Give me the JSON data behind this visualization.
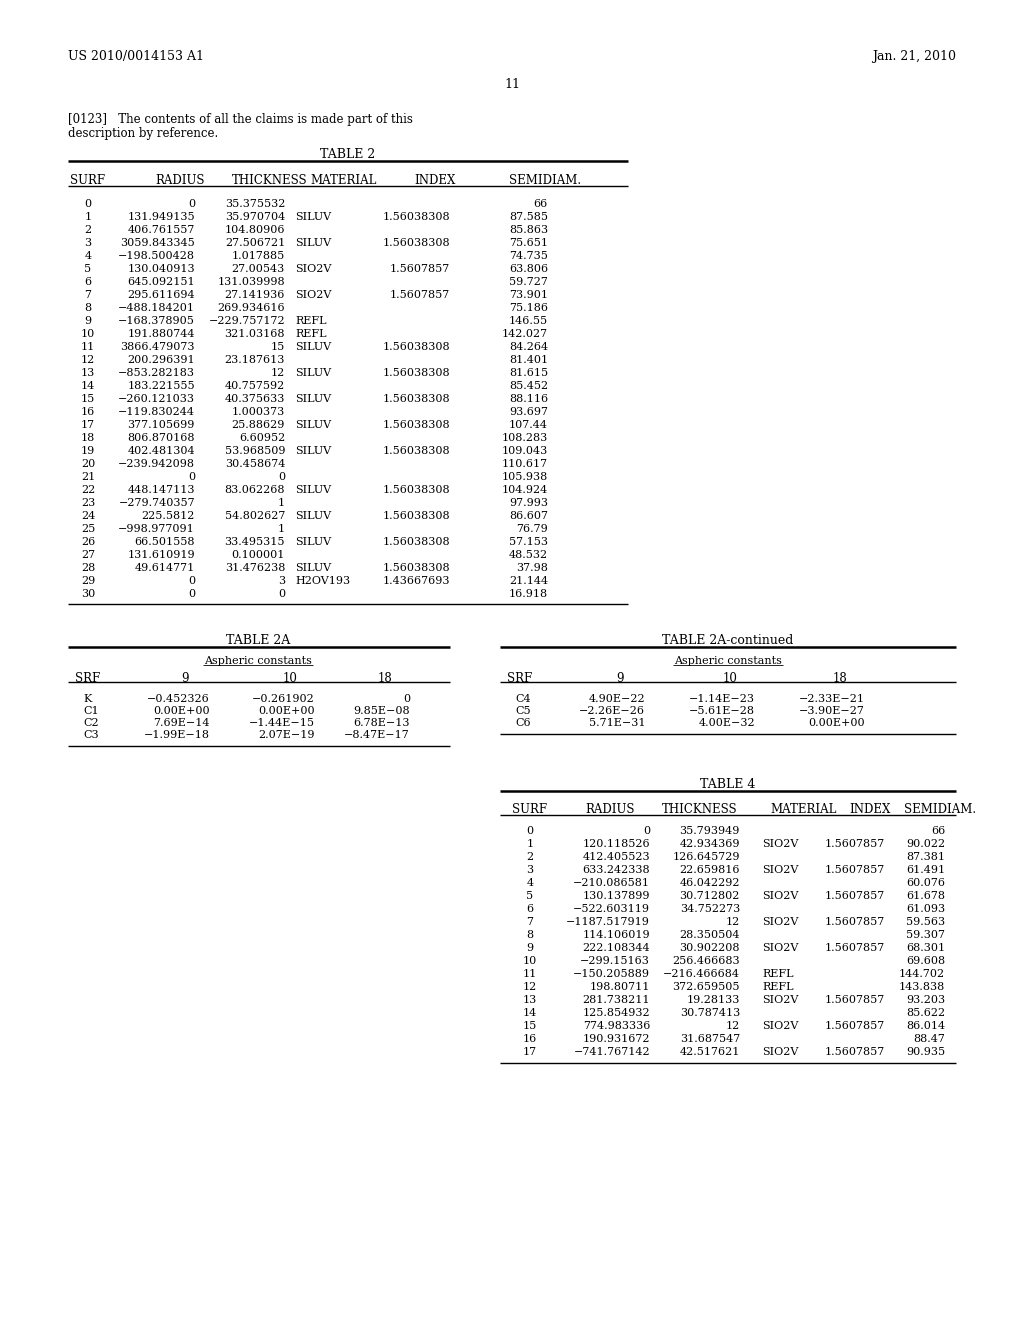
{
  "header_left": "US 2010/0014153 A1",
  "header_right": "Jan. 21, 2010",
  "page_number": "11",
  "para_line1": "[0123]   The contents of all the claims is made part of this",
  "para_line2": "description by reference.",
  "table2_title": "TABLE 2",
  "table2_headers": [
    "SURF",
    "RADIUS",
    "THICKNESS",
    "MATERIAL",
    "INDEX",
    "SEMIDIAM."
  ],
  "table2_rows": [
    [
      "0",
      "0",
      "35.375532",
      "",
      "",
      "66"
    ],
    [
      "1",
      "131.949135",
      "35.970704",
      "SILUV",
      "1.56038308",
      "87.585"
    ],
    [
      "2",
      "406.761557",
      "104.80906",
      "",
      "",
      "85.863"
    ],
    [
      "3",
      "3059.843345",
      "27.506721",
      "SILUV",
      "1.56038308",
      "75.651"
    ],
    [
      "4",
      "−198.500428",
      "1.017885",
      "",
      "",
      "74.735"
    ],
    [
      "5",
      "130.040913",
      "27.00543",
      "SIO2V",
      "1.5607857",
      "63.806"
    ],
    [
      "6",
      "645.092151",
      "131.039998",
      "",
      "",
      "59.727"
    ],
    [
      "7",
      "295.611694",
      "27.141936",
      "SIO2V",
      "1.5607857",
      "73.901"
    ],
    [
      "8",
      "−488.184201",
      "269.934616",
      "",
      "",
      "75.186"
    ],
    [
      "9",
      "−168.378905",
      "−229.757172",
      "REFL",
      "",
      "146.55"
    ],
    [
      "10",
      "191.880744",
      "321.03168",
      "REFL",
      "",
      "142.027"
    ],
    [
      "11",
      "3866.479073",
      "15",
      "SILUV",
      "1.56038308",
      "84.264"
    ],
    [
      "12",
      "200.296391",
      "23.187613",
      "",
      "",
      "81.401"
    ],
    [
      "13",
      "−853.282183",
      "12",
      "SILUV",
      "1.56038308",
      "81.615"
    ],
    [
      "14",
      "183.221555",
      "40.757592",
      "",
      "",
      "85.452"
    ],
    [
      "15",
      "−260.121033",
      "40.375633",
      "SILUV",
      "1.56038308",
      "88.116"
    ],
    [
      "16",
      "−119.830244",
      "1.000373",
      "",
      "",
      "93.697"
    ],
    [
      "17",
      "377.105699",
      "25.88629",
      "SILUV",
      "1.56038308",
      "107.44"
    ],
    [
      "18",
      "806.870168",
      "6.60952",
      "",
      "",
      "108.283"
    ],
    [
      "19",
      "402.481304",
      "53.968509",
      "SILUV",
      "1.56038308",
      "109.043"
    ],
    [
      "20",
      "−239.942098",
      "30.458674",
      "",
      "",
      "110.617"
    ],
    [
      "21",
      "0",
      "0",
      "",
      "",
      "105.938"
    ],
    [
      "22",
      "448.147113",
      "83.062268",
      "SILUV",
      "1.56038308",
      "104.924"
    ],
    [
      "23",
      "−279.740357",
      "1",
      "",
      "",
      "97.993"
    ],
    [
      "24",
      "225.5812",
      "54.802627",
      "SILUV",
      "1.56038308",
      "86.607"
    ],
    [
      "25",
      "−998.977091",
      "1",
      "",
      "",
      "76.79"
    ],
    [
      "26",
      "66.501558",
      "33.495315",
      "SILUV",
      "1.56038308",
      "57.153"
    ],
    [
      "27",
      "131.610919",
      "0.100001",
      "",
      "",
      "48.532"
    ],
    [
      "28",
      "49.614771",
      "31.476238",
      "SILUV",
      "1.56038308",
      "37.98"
    ],
    [
      "29",
      "0",
      "3",
      "H2OV193",
      "1.43667693",
      "21.144"
    ],
    [
      "30",
      "0",
      "0",
      "",
      "",
      "16.918"
    ]
  ],
  "table2a_title": "TABLE 2A",
  "table2a_cont_title": "TABLE 2A-continued",
  "table2a_subtitle": "Aspheric constants",
  "table2a_headers": [
    "SRF",
    "9",
    "10",
    "18"
  ],
  "table2a_rows": [
    [
      "K",
      "−0.452326",
      "−0.261902",
      "0"
    ],
    [
      "C1",
      "0.00E+00",
      "0.00E+00",
      "9.85E−08"
    ],
    [
      "C2",
      "7.69E−14",
      "−1.44E−15",
      "6.78E−13"
    ],
    [
      "C3",
      "−1.99E−18",
      "2.07E−19",
      "−8.47E−17"
    ]
  ],
  "table2a_cont_rows": [
    [
      "C4",
      "4.90E−22",
      "−1.14E−23",
      "−2.33E−21"
    ],
    [
      "C5",
      "−2.26E−26",
      "−5.61E−28",
      "−3.90E−27"
    ],
    [
      "C6",
      "5.71E−31",
      "4.00E−32",
      "0.00E+00"
    ]
  ],
  "table4_title": "TABLE 4",
  "table4_headers": [
    "SURF",
    "RADIUS",
    "THICKNESS",
    "MATERIAL",
    "INDEX",
    "SEMIDIAM."
  ],
  "table4_rows": [
    [
      "0",
      "0",
      "35.793949",
      "",
      "",
      "66"
    ],
    [
      "1",
      "120.118526",
      "42.934369",
      "SIO2V",
      "1.5607857",
      "90.022"
    ],
    [
      "2",
      "412.405523",
      "126.645729",
      "",
      "",
      "87.381"
    ],
    [
      "3",
      "633.242338",
      "22.659816",
      "SIO2V",
      "1.5607857",
      "61.491"
    ],
    [
      "4",
      "−210.086581",
      "46.042292",
      "",
      "",
      "60.076"
    ],
    [
      "5",
      "130.137899",
      "30.712802",
      "SIO2V",
      "1.5607857",
      "61.678"
    ],
    [
      "6",
      "−522.603119",
      "34.752273",
      "",
      "",
      "61.093"
    ],
    [
      "7",
      "−1187.517919",
      "12",
      "SIO2V",
      "1.5607857",
      "59.563"
    ],
    [
      "8",
      "114.106019",
      "28.350504",
      "",
      "",
      "59.307"
    ],
    [
      "9",
      "222.108344",
      "30.902208",
      "SIO2V",
      "1.5607857",
      "68.301"
    ],
    [
      "10",
      "−299.15163",
      "256.466683",
      "",
      "",
      "69.608"
    ],
    [
      "11",
      "−150.205889",
      "−216.466684",
      "REFL",
      "",
      "144.702"
    ],
    [
      "12",
      "198.80711",
      "372.659505",
      "REFL",
      "",
      "143.838"
    ],
    [
      "13",
      "281.738211",
      "19.28133",
      "SIO2V",
      "1.5607857",
      "93.203"
    ],
    [
      "14",
      "125.854932",
      "30.787413",
      "",
      "",
      "85.622"
    ],
    [
      "15",
      "774.983336",
      "12",
      "SIO2V",
      "1.5607857",
      "86.014"
    ],
    [
      "16",
      "190.931672",
      "31.687547",
      "",
      "",
      "88.47"
    ],
    [
      "17",
      "−741.767142",
      "42.517621",
      "SIO2V",
      "1.5607857",
      "90.935"
    ]
  ],
  "bg_color": "#ffffff",
  "text_color": "#000000"
}
